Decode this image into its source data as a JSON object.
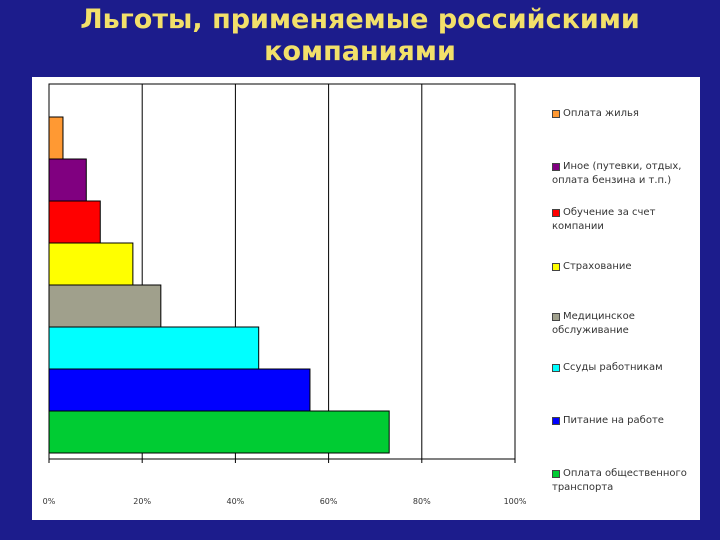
{
  "page": {
    "title_line1": "Льготы, применяемые российскими",
    "title_line2": "компаниями"
  },
  "chart_data": {
    "type": "bar",
    "orientation": "horizontal",
    "categories": [
      "Оплата жилья",
      "Иное (путевки, отдых, оплата бензина и т.п.)",
      "Обучение за счет компании",
      "Страхование",
      "Медицинское обслуживание",
      "Ссуды работникам",
      "Питание на работе",
      "Оплата общественного транспорта"
    ],
    "values": [
      3,
      8,
      11,
      18,
      24,
      45,
      56,
      73
    ],
    "colors": [
      "#ff9933",
      "#800080",
      "#ff0000",
      "#ffff00",
      "#a0a08c",
      "#00ffff",
      "#0000ff",
      "#00cc33"
    ],
    "xlim": [
      0,
      100
    ],
    "xticks": [
      "0%",
      "20%",
      "40%",
      "60%",
      "80%",
      "100%"
    ],
    "grid": true,
    "legend_position": "right"
  }
}
